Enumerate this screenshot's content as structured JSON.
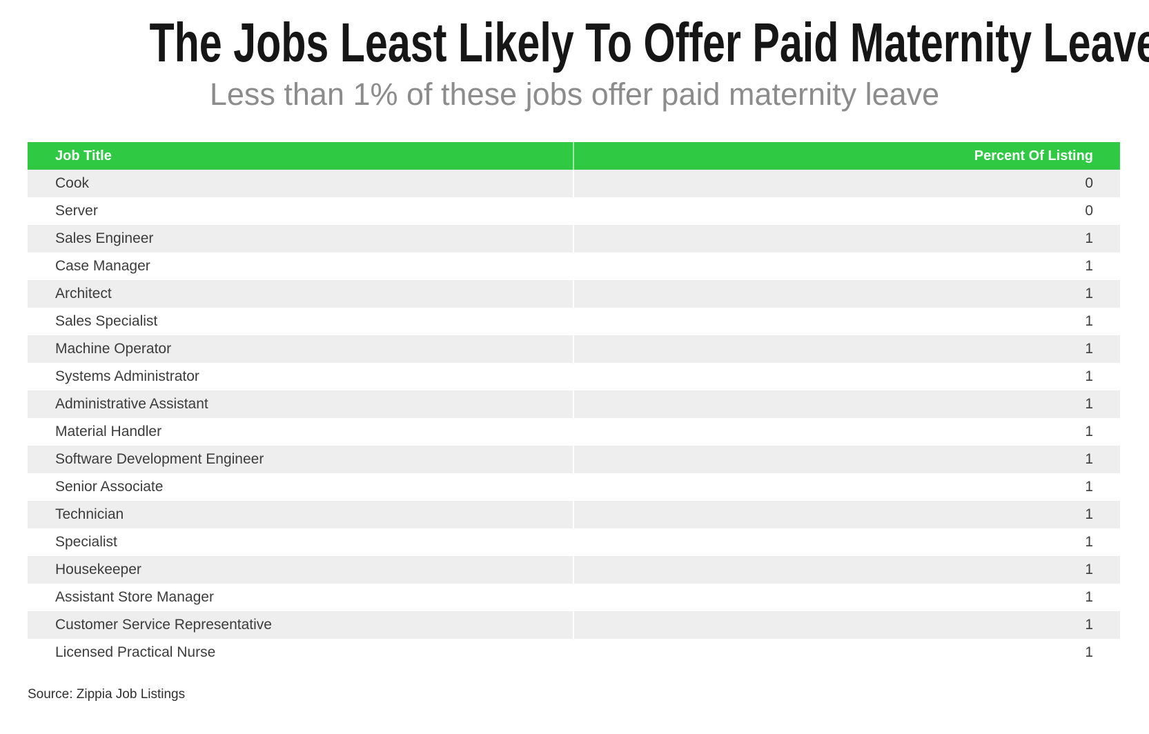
{
  "page": {
    "title": "The Jobs Least Likely To Offer Paid Maternity Leave",
    "subtitle": "Less than 1% of these jobs offer paid maternity leave",
    "source": "Source: Zippia Job Listings"
  },
  "colors": {
    "header_bg": "#2fc944",
    "header_text": "#ffffff",
    "row_alt_bg": "#eeeeee",
    "row_bg": "#ffffff",
    "body_text": "#3c3c3c",
    "title_text": "#161616",
    "subtitle_text": "#8c8c8c"
  },
  "table": {
    "columns": [
      {
        "label": "Job Title",
        "align": "left"
      },
      {
        "label": "Percent Of Listing",
        "align": "right"
      }
    ],
    "rows": [
      {
        "job_title": "Cook",
        "percent": "0"
      },
      {
        "job_title": "Server",
        "percent": "0"
      },
      {
        "job_title": "Sales Engineer",
        "percent": "1"
      },
      {
        "job_title": "Case Manager",
        "percent": "1"
      },
      {
        "job_title": "Architect",
        "percent": "1"
      },
      {
        "job_title": "Sales Specialist",
        "percent": "1"
      },
      {
        "job_title": "Machine Operator",
        "percent": "1"
      },
      {
        "job_title": "Systems Administrator",
        "percent": "1"
      },
      {
        "job_title": "Administrative Assistant",
        "percent": "1"
      },
      {
        "job_title": "Material Handler",
        "percent": "1"
      },
      {
        "job_title": "Software Development Engineer",
        "percent": "1"
      },
      {
        "job_title": "Senior Associate",
        "percent": "1"
      },
      {
        "job_title": "Technician",
        "percent": "1"
      },
      {
        "job_title": "Specialist",
        "percent": "1"
      },
      {
        "job_title": "Housekeeper",
        "percent": "1"
      },
      {
        "job_title": "Assistant Store Manager",
        "percent": "1"
      },
      {
        "job_title": "Customer Service Representative",
        "percent": "1"
      },
      {
        "job_title": "Licensed Practical Nurse",
        "percent": "1"
      }
    ]
  },
  "chart_data": {
    "type": "table",
    "title": "The Jobs Least Likely To Offer Paid Maternity Leave",
    "subtitle": "Less than 1% of these jobs offer paid maternity leave",
    "columns": [
      "Job Title",
      "Percent Of Listing"
    ],
    "rows": [
      [
        "Cook",
        0
      ],
      [
        "Server",
        0
      ],
      [
        "Sales Engineer",
        1
      ],
      [
        "Case Manager",
        1
      ],
      [
        "Architect",
        1
      ],
      [
        "Sales Specialist",
        1
      ],
      [
        "Machine Operator",
        1
      ],
      [
        "Systems Administrator",
        1
      ],
      [
        "Administrative Assistant",
        1
      ],
      [
        "Material Handler",
        1
      ],
      [
        "Software Development Engineer",
        1
      ],
      [
        "Senior Associate",
        1
      ],
      [
        "Technician",
        1
      ],
      [
        "Specialist",
        1
      ],
      [
        "Housekeeper",
        1
      ],
      [
        "Assistant Store Manager",
        1
      ],
      [
        "Customer Service Representative",
        1
      ],
      [
        "Licensed Practical Nurse",
        1
      ]
    ],
    "source": "Source: Zippia Job Listings",
    "header_color": "#2fc944",
    "alt_row_color": "#eeeeee"
  }
}
